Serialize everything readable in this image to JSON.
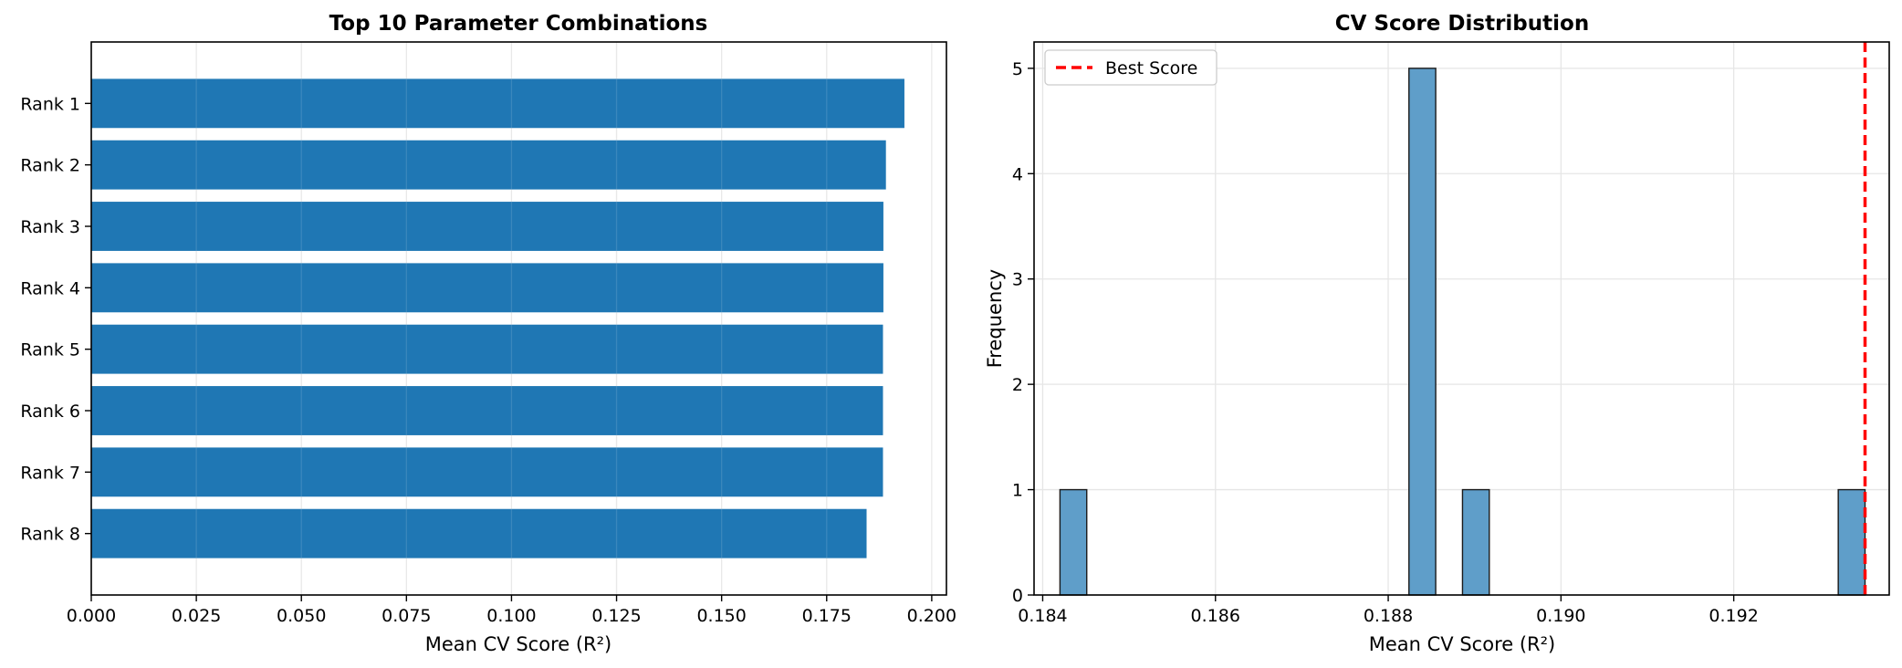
{
  "chart_data": [
    {
      "type": "bar",
      "orientation": "horizontal",
      "title": "Top 10 Parameter Combinations",
      "xlabel": "Mean CV Score (R²)",
      "ylabel": "",
      "categories": [
        "Rank 1",
        "Rank 2",
        "Rank 3",
        "Rank 4",
        "Rank 5",
        "Rank 6",
        "Rank 7",
        "Rank 8"
      ],
      "values": [
        0.1935,
        0.1891,
        0.1885,
        0.1885,
        0.1884,
        0.1884,
        0.1884,
        0.1845
      ],
      "xlim": [
        0,
        0.2035
      ],
      "xticks": [
        "0.000",
        "0.025",
        "0.050",
        "0.075",
        "0.100",
        "0.125",
        "0.150",
        "0.175",
        "0.200"
      ],
      "grid": true,
      "bar_color": "#1f77b4"
    },
    {
      "type": "histogram",
      "title": "CV Score Distribution",
      "xlabel": "Mean CV Score (R²)",
      "ylabel": "Frequency",
      "bins": [
        {
          "x0": 0.1842,
          "x1": 0.18451,
          "count": 1
        },
        {
          "x0": 0.18824,
          "x1": 0.18855,
          "count": 5
        },
        {
          "x0": 0.18886,
          "x1": 0.18917,
          "count": 1
        },
        {
          "x0": 0.19321,
          "x1": 0.19352,
          "count": 1
        }
      ],
      "xlim": [
        0.1839,
        0.1938
      ],
      "ylim": [
        0,
        5.25
      ],
      "xticks": [
        "0.184",
        "0.186",
        "0.188",
        "0.190",
        "0.192"
      ],
      "yticks": [
        "0",
        "1",
        "2",
        "3",
        "4",
        "5"
      ],
      "best_score": 0.19352,
      "legend": {
        "label": "Best Score",
        "placement": "upper left"
      },
      "grid": true,
      "bar_color": "#5f9ec9",
      "best_line_color": "#ff0000"
    }
  ]
}
